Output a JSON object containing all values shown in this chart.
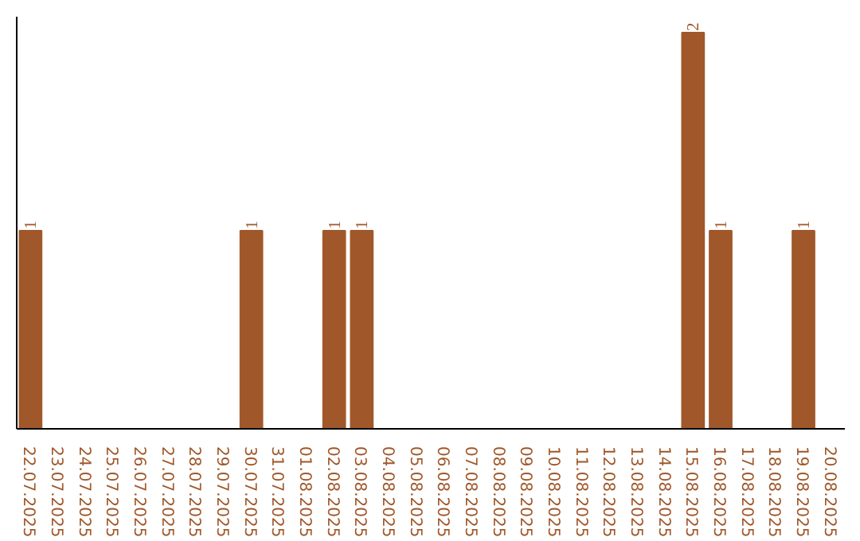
{
  "chart_data": {
    "type": "bar",
    "categories": [
      "22.07.2025",
      "23.07.2025",
      "24.07.2025",
      "25.07.2025",
      "26.07.2025",
      "27.07.2025",
      "28.07.2025",
      "29.07.2025",
      "30.07.2025",
      "31.07.2025",
      "01.08.2025",
      "02.08.2025",
      "03.08.2025",
      "04.08.2025",
      "05.08.2025",
      "06.08.2025",
      "07.08.2025",
      "08.08.2025",
      "09.08.2025",
      "10.08.2025",
      "11.08.2025",
      "12.08.2025",
      "13.08.2025",
      "14.08.2025",
      "15.08.2025",
      "16.08.2025",
      "17.08.2025",
      "18.08.2025",
      "19.08.2025",
      "20.08.2025"
    ],
    "values": [
      1,
      0,
      0,
      0,
      0,
      0,
      0,
      0,
      1,
      0,
      0,
      1,
      1,
      0,
      0,
      0,
      0,
      0,
      0,
      0,
      0,
      0,
      0,
      0,
      2,
      1,
      0,
      0,
      1,
      0
    ],
    "value_labels": [
      "1",
      null,
      null,
      null,
      null,
      null,
      null,
      null,
      "1",
      null,
      null,
      "1",
      "1",
      null,
      null,
      null,
      null,
      null,
      null,
      null,
      null,
      null,
      null,
      null,
      "2",
      "1",
      null,
      null,
      "1",
      null
    ],
    "color": "#a0582a",
    "grid": false,
    "tick_labels": "x"
  }
}
